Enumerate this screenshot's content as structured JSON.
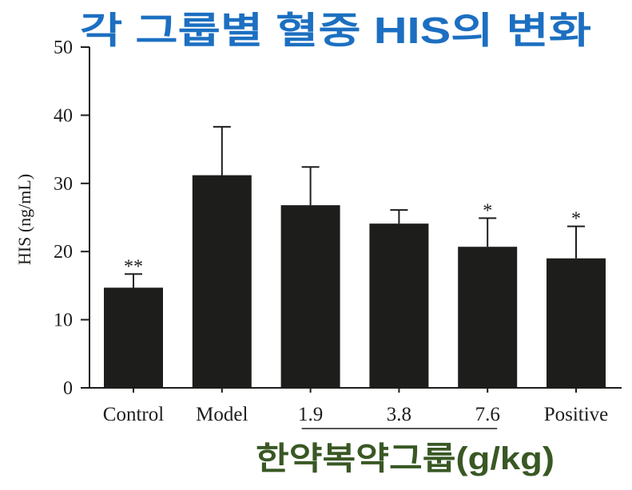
{
  "chart_data": {
    "type": "bar",
    "title": "각 그룹별 혈중 HIS의 변화",
    "xlabel": "",
    "ylabel": "HIS (ng/mL)",
    "categories": [
      "Control",
      "Model",
      "1.9",
      "3.8",
      "7.6",
      "Positive"
    ],
    "values": [
      14.7,
      31.2,
      26.8,
      24.1,
      20.7,
      19.0
    ],
    "error": [
      2.0,
      7.1,
      5.6,
      2.0,
      4.2,
      4.7
    ],
    "significance": [
      "**",
      "",
      "",
      "",
      "*",
      "*"
    ],
    "ylim": [
      0,
      50
    ],
    "yticks": [
      0,
      10,
      20,
      30,
      40,
      50
    ],
    "group_label": {
      "text": "한약복약그룹(g/kg)",
      "from": "1.9",
      "to": "7.6"
    },
    "grid": false,
    "legend": "none",
    "colors": {
      "bars": "#1d1d1b",
      "axis": "#1d1d1b",
      "title": "#1c6fc1",
      "group_label": "#395824"
    }
  }
}
